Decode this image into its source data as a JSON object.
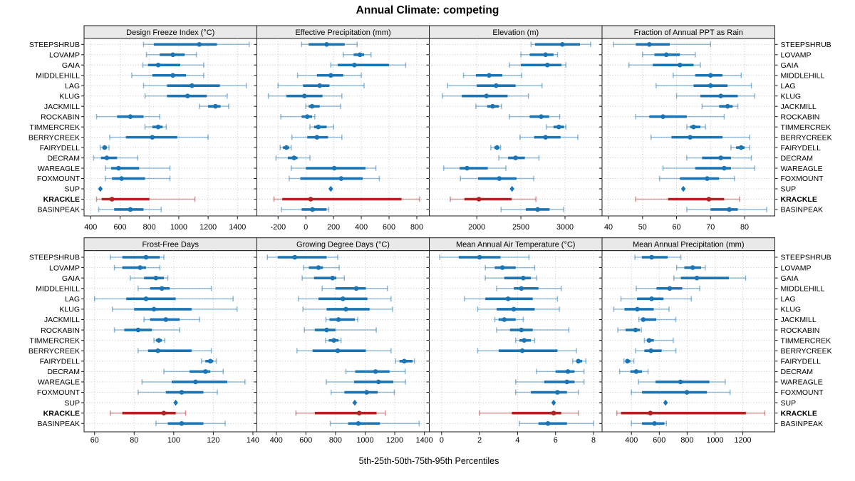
{
  "title": "Annual Climate: competing",
  "xlabel": "5th-25th-50th-75th-95th Percentiles",
  "colors": {
    "series": "#1B74B3",
    "highlight": "#B22222",
    "strip_bg": "#E9E9E9",
    "grid": "#BEBEBE",
    "border": "#1A1A1A",
    "text": "#000000"
  },
  "chart_data": {
    "type": "scatter",
    "variant": "dot-interval percentile plot (trellis, 2 rows x 4 cols)",
    "percentiles": [
      5,
      25,
      50,
      75,
      95
    ],
    "highlight_site": "KRACKLE",
    "diamond_site": "SUP",
    "legend_position": "none",
    "grid": "dotted",
    "sites": [
      "STEEPSHRUB",
      "LOVAMP",
      "GAIA",
      "MIDDLEHILL",
      "LAG",
      "KLUG",
      "JACKMILL",
      "ROCKABIN",
      "TIMMERCREK",
      "BERRYCREEK",
      "FAIRYDELL",
      "DECRAM",
      "WAREAGLE",
      "FOXMOUNT",
      "SUP",
      "KRACKLE",
      "BASINPEAK"
    ],
    "panels": [
      {
        "title": "Design Freeze Index (°C)",
        "xlim": [
          355,
          1532
        ],
        "ticks": [
          400,
          600,
          800,
          1000,
          1200,
          1400
        ],
        "values": {
          "STEEPSHRUB": [
            760,
            830,
            1140,
            1260,
            1480
          ],
          "LOVAMP": [
            780,
            870,
            960,
            1040,
            1120
          ],
          "GAIA": [
            755,
            790,
            860,
            1010,
            1170
          ],
          "MIDDLEHILL": [
            680,
            820,
            960,
            1050,
            1170
          ],
          "LAG": [
            760,
            920,
            1090,
            1280,
            1460
          ],
          "KLUG": [
            770,
            920,
            1060,
            1190,
            1330
          ],
          "JACKMILL": [
            1140,
            1200,
            1250,
            1285,
            1340
          ],
          "ROCKABIN": [
            440,
            580,
            670,
            760,
            870
          ],
          "TIMMERCREK": [
            770,
            820,
            860,
            890,
            915
          ],
          "BERRYCREEK": [
            530,
            640,
            820,
            990,
            1200
          ],
          "FAIRYDELL": [
            465,
            480,
            495,
            510,
            525
          ],
          "DECRAM": [
            420,
            470,
            510,
            580,
            720
          ],
          "WAREAGLE": [
            500,
            540,
            590,
            730,
            940
          ],
          "FOXMOUNT": [
            500,
            545,
            610,
            770,
            940
          ],
          "SUP": [
            466
          ],
          "KRACKLE": [
            440,
            475,
            545,
            800,
            1110
          ],
          "BASINPEAK": [
            455,
            560,
            670,
            760,
            880
          ]
        }
      },
      {
        "title": "Effective Precipitation (mm)",
        "xlim": [
          -353,
          890
        ],
        "ticks": [
          -200,
          0,
          200,
          400,
          600,
          800
        ],
        "values": {
          "STEEPSHRUB": [
            -30,
            20,
            150,
            280,
            370
          ],
          "LOVAMP": [
            270,
            345,
            390,
            420,
            470
          ],
          "GAIA": [
            180,
            230,
            350,
            600,
            720
          ],
          "MIDDLEHILL": [
            -60,
            80,
            180,
            270,
            400
          ],
          "LAG": [
            -200,
            -20,
            100,
            170,
            420
          ],
          "KLUG": [
            -270,
            -140,
            -10,
            120,
            260
          ],
          "JACKMILL": [
            0,
            20,
            45,
            100,
            250
          ],
          "ROCKABIN": [
            -180,
            -30,
            10,
            45,
            65
          ],
          "TIMMERCREK": [
            30,
            60,
            90,
            150,
            200
          ],
          "BERRYCREEK": [
            -100,
            10,
            80,
            160,
            260
          ],
          "FAIRYDELL": [
            -185,
            -165,
            -140,
            -120,
            -105
          ],
          "DECRAM": [
            -215,
            -130,
            -85,
            -60,
            30
          ],
          "WAREAGLE": [
            -105,
            0,
            205,
            430,
            505
          ],
          "FOXMOUNT": [
            -120,
            -40,
            255,
            410,
            530
          ],
          "SUP": [
            180
          ],
          "KRACKLE": [
            -230,
            -170,
            35,
            690,
            820
          ],
          "BASINPEAK": [
            -175,
            -30,
            48,
            150,
            165
          ]
        }
      },
      {
        "title": "Elevation (m)",
        "xlim": [
          1462,
          3420
        ],
        "ticks": [
          2000,
          2500,
          3000
        ],
        "values": {
          "STEEPSHRUB": [
            2615,
            2660,
            2970,
            3170,
            3290
          ],
          "LOVAMP": [
            2500,
            2600,
            2780,
            2870,
            2915
          ],
          "GAIA": [
            2370,
            2500,
            2800,
            2960,
            3010
          ],
          "MIDDLEHILL": [
            1850,
            1990,
            2140,
            2290,
            2510
          ],
          "LAG": [
            1670,
            2000,
            2220,
            2440,
            2740
          ],
          "KLUG": [
            1610,
            1830,
            2110,
            2350,
            2585
          ],
          "JACKMILL": [
            1990,
            2120,
            2180,
            2250,
            2280
          ],
          "ROCKABIN": [
            2370,
            2600,
            2730,
            2820,
            2940
          ],
          "TIMMERCREK": [
            2790,
            2870,
            2930,
            2990,
            3010
          ],
          "BERRYCREEK": [
            2490,
            2650,
            2780,
            2950,
            3145
          ],
          "FAIRYDELL": [
            2160,
            2200,
            2230,
            2255,
            2270
          ],
          "DECRAM": [
            2250,
            2355,
            2440,
            2545,
            2705
          ],
          "WAREAGLE": [
            1625,
            1805,
            1890,
            2125,
            2330
          ],
          "FOXMOUNT": [
            1815,
            2015,
            2255,
            2450,
            2645
          ],
          "SUP": [
            2400
          ],
          "KRACKLE": [
            1700,
            1860,
            2025,
            2395,
            2670
          ],
          "BASINPEAK": [
            2275,
            2555,
            2690,
            2825,
            2985
          ]
        }
      },
      {
        "title": "Fraction of Annual PPT as Rain",
        "xlim": [
          38.1,
          88.9
        ],
        "ticks": [
          40,
          50,
          60,
          70,
          80
        ],
        "values": {
          "STEEPSHRUB": [
            41.5,
            48,
            52,
            58,
            70
          ],
          "LOVAMP": [
            50,
            53.5,
            57,
            61,
            65.5
          ],
          "GAIA": [
            46,
            53,
            61,
            65,
            67
          ],
          "MIDDLEHILL": [
            59,
            65.5,
            70,
            73.5,
            79
          ],
          "LAG": [
            54,
            65,
            70,
            75,
            82
          ],
          "KLUG": [
            60,
            67,
            73,
            78,
            83
          ],
          "JACKMILL": [
            67.5,
            72.5,
            75,
            76.5,
            78
          ],
          "ROCKABIN": [
            48,
            52,
            56,
            63,
            74
          ],
          "TIMMERCREK": [
            63,
            64,
            65,
            67,
            68.5
          ],
          "BERRYCREEK": [
            52.5,
            58.5,
            64,
            73.5,
            81.5
          ],
          "FAIRYDELL": [
            76,
            77.5,
            79,
            80,
            81.5
          ],
          "DECRAM": [
            63,
            67.5,
            73,
            76,
            82
          ],
          "WAREAGLE": [
            56,
            65.5,
            74,
            76,
            83
          ],
          "FOXMOUNT": [
            55,
            61,
            69,
            72.5,
            77
          ],
          "SUP": [
            62
          ],
          "KRACKLE": [
            48,
            57.5,
            69.5,
            74,
            78.5
          ],
          "BASINPEAK": [
            63,
            70,
            75.5,
            78,
            86.5
          ]
        }
      },
      {
        "title": "Frost-Free Days",
        "xlim": [
          54.7,
          142
        ],
        "ticks": [
          60,
          80,
          100,
          120,
          140
        ],
        "values": {
          "STEEPSHRUB": [
            68,
            74,
            86,
            93,
            95
          ],
          "LOVAMP": [
            70,
            74,
            83,
            86,
            93
          ],
          "GAIA": [
            78,
            85,
            91,
            95,
            97
          ],
          "MIDDLEHILL": [
            82,
            88,
            94,
            98,
            119
          ],
          "LAG": [
            60,
            76,
            86,
            101,
            130
          ],
          "KLUG": [
            69,
            80,
            90,
            109,
            132
          ],
          "JACKMILL": [
            85,
            88,
            96,
            103,
            113
          ],
          "ROCKABIN": [
            70,
            75,
            82,
            89,
            103
          ],
          "TIMMERCREK": [
            90,
            91,
            92.5,
            94,
            95.5
          ],
          "BERRYCREEK": [
            82,
            87,
            92,
            109,
            119
          ],
          "FAIRYDELL": [
            114,
            116,
            118.5,
            120,
            121.5
          ],
          "DECRAM": [
            95,
            108,
            116,
            118.5,
            125
          ],
          "WAREAGLE": [
            84,
            99,
            111,
            127,
            136
          ],
          "FOXMOUNT": [
            82,
            96,
            104,
            115,
            122
          ],
          "SUP": [
            101
          ],
          "KRACKLE": [
            68,
            74,
            95,
            101,
            106
          ],
          "BASINPEAK": [
            91,
            97,
            104,
            115,
            126
          ]
        }
      },
      {
        "title": "Growing Degree Days (°C)",
        "xlim": [
          269,
          1433
        ],
        "ticks": [
          400,
          600,
          800,
          1000,
          1200,
          1400
        ],
        "values": {
          "STEEPSHRUB": [
            340,
            410,
            525,
            740,
            815
          ],
          "LOVAMP": [
            585,
            620,
            685,
            715,
            825
          ],
          "GAIA": [
            575,
            655,
            780,
            805,
            860
          ],
          "MIDDLEHILL": [
            710,
            800,
            940,
            1005,
            1150
          ],
          "LAG": [
            550,
            685,
            850,
            1015,
            1175
          ],
          "KLUG": [
            580,
            740,
            870,
            1030,
            1185
          ],
          "JACKMILL": [
            735,
            760,
            820,
            930,
            950
          ],
          "ROCKABIN": [
            590,
            660,
            740,
            800,
            1075
          ],
          "TIMMERCREK": [
            733,
            754,
            789,
            821,
            837
          ],
          "BERRYCREEK": [
            540,
            645,
            815,
            1005,
            1175
          ],
          "FAIRYDELL": [
            1205,
            1232,
            1264,
            1320,
            1333
          ],
          "DECRAM": [
            870,
            933,
            1070,
            1165,
            1270
          ],
          "WAREAGLE": [
            738,
            925,
            1090,
            1190,
            1272
          ],
          "FOXMOUNT": [
            770,
            860,
            1010,
            1085,
            1197
          ],
          "SUP": [
            930
          ],
          "KRACKLE": [
            533,
            660,
            960,
            1077,
            1136
          ],
          "BASINPEAK": [
            765,
            885,
            954,
            1100,
            1365
          ]
        }
      },
      {
        "title": "Mean Annual Air Temperature (°C)",
        "xlim": [
          -0.65,
          8.45
        ],
        "ticks": [
          0,
          2,
          4,
          6,
          8
        ],
        "values": {
          "STEEPSHRUB": [
            -0.1,
            0.9,
            2,
            3.1,
            4.6
          ],
          "LOVAMP": [
            2.3,
            2.8,
            3.2,
            3.9,
            4.9
          ],
          "GAIA": [
            2.3,
            3.3,
            4.3,
            4.7,
            5
          ],
          "MIDDLEHILL": [
            2.9,
            3.8,
            4.2,
            5.1,
            6.3
          ],
          "LAG": [
            1.2,
            2.3,
            3.5,
            4.8,
            6.1
          ],
          "KLUG": [
            1.9,
            2.9,
            3.8,
            4.9,
            6.2
          ],
          "JACKMILL": [
            2.8,
            3,
            3.3,
            3.9,
            4.3
          ],
          "ROCKABIN": [
            2.9,
            3.6,
            4.2,
            4.8,
            6.7
          ],
          "TIMMERCREK": [
            3.9,
            4.1,
            4.35,
            4.7,
            4.9
          ],
          "BERRYCREEK": [
            1.9,
            3,
            4.25,
            6.1,
            7.1
          ],
          "FAIRYDELL": [
            6.9,
            7.1,
            7.2,
            7.4,
            7.6
          ],
          "DECRAM": [
            5,
            6,
            6.65,
            7,
            7.5
          ],
          "WAREAGLE": [
            3.9,
            5.4,
            6.6,
            7,
            7.5
          ],
          "FOXMOUNT": [
            3.9,
            4.7,
            6.1,
            6.6,
            7.2
          ],
          "SUP": [
            5.9
          ],
          "KRACKLE": [
            2,
            3.7,
            5.9,
            6.3,
            7.2
          ],
          "BASINPEAK": [
            4.1,
            5.1,
            5.6,
            6.6,
            8
          ]
        }
      },
      {
        "title": "Mean Annual Precipitation (mm)",
        "xlim": [
          189,
          1430
        ],
        "ticks": [
          400,
          600,
          800,
          1000,
          1200
        ],
        "values": {
          "STEEPSHRUB": [
            425,
            475,
            545,
            660,
            755
          ],
          "LOVAMP": [
            725,
            780,
            840,
            900,
            930
          ],
          "GAIA": [
            705,
            755,
            870,
            1100,
            1220
          ],
          "MIDDLEHILL": [
            435,
            580,
            675,
            765,
            890
          ],
          "LAG": [
            325,
            440,
            545,
            630,
            830
          ],
          "KLUG": [
            273,
            350,
            442,
            560,
            670
          ],
          "JACKMILL": [
            454,
            468,
            485,
            578,
            719
          ],
          "ROCKABIN": [
            302,
            358,
            429,
            460,
            471
          ],
          "TIMMERCREK": [
            493,
            510,
            527,
            561,
            700
          ],
          "BERRYCREEK": [
            430,
            493,
            540,
            617,
            719
          ],
          "FAIRYDELL": [
            346,
            358,
            371,
            392,
            417
          ],
          "DECRAM": [
            315,
            392,
            434,
            476,
            519
          ],
          "WAREAGLE": [
            450,
            573,
            752,
            960,
            1073
          ],
          "FOXMOUNT": [
            400,
            476,
            798,
            942,
            1108
          ],
          "SUP": [
            645
          ],
          "KRACKLE": [
            295,
            325,
            536,
            1222,
            1358
          ],
          "BASINPEAK": [
            400,
            476,
            566,
            637,
            651
          ]
        }
      }
    ]
  }
}
